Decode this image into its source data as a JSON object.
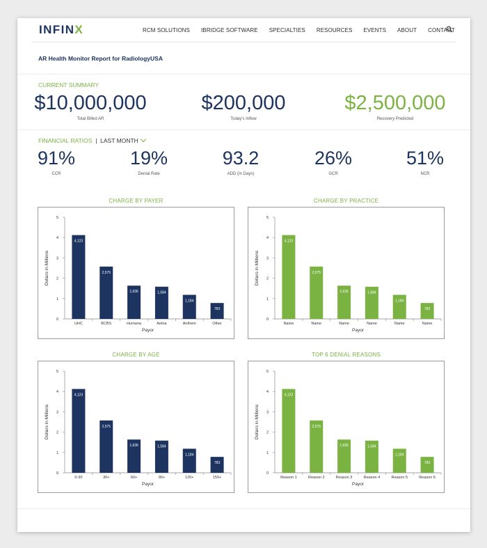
{
  "nav": {
    "logo_main": "INFIN",
    "logo_x": "X",
    "items": [
      "RCM SOLUTIONS",
      "IBRIDGE SOFTWARE",
      "SPECIALTIES",
      "RESOURCES",
      "EVENTS",
      "ABOUT",
      "CONTACT"
    ]
  },
  "report_title": "AR Health Monitor Report for RadiologyUSA",
  "summary": {
    "label": "CURRENT SUMMARY",
    "items": [
      {
        "value": "$10,000,000",
        "caption": "Total Billed AR"
      },
      {
        "value": "$200,000",
        "caption": "Today's Inflow"
      },
      {
        "value": "$2,500,000",
        "caption": "Recovery Predicted"
      }
    ]
  },
  "ratios": {
    "label": "FINANCIAL RATIOS",
    "period": "LAST MONTH",
    "items": [
      {
        "value": "91%",
        "caption": "CCR"
      },
      {
        "value": "19%",
        "caption": "Denial Rate"
      },
      {
        "value": "93.2",
        "caption": "ADD (In Days)"
      },
      {
        "value": "26%",
        "caption": "GCR"
      },
      {
        "value": "51%",
        "caption": "NCR"
      }
    ]
  },
  "colors": {
    "navy": "#1d3461",
    "green": "#7bb342"
  },
  "chart_data": [
    {
      "type": "bar",
      "title": "CHARGE BY PAYER",
      "categories": [
        "UHC",
        "BCBS",
        "Humana",
        "Aetna",
        "Anthem",
        "Other"
      ],
      "values": [
        4.123,
        2.575,
        1.636,
        1.584,
        1.184,
        0.783
      ],
      "labels": [
        "4,123",
        "2,575",
        "1,636",
        "1,584",
        "1,184",
        "783"
      ],
      "xlabel": "Payor",
      "ylabel": "Dollars in Millions",
      "ylim": [
        0,
        5
      ],
      "yticks": [
        "0",
        "1",
        "2",
        "3",
        "4",
        "5"
      ],
      "color": "#1d3461"
    },
    {
      "type": "bar",
      "title": "CHARGE BY PRACTICE",
      "categories": [
        "Name",
        "Name",
        "Name",
        "Name",
        "Name",
        "Name"
      ],
      "values": [
        4.123,
        2.575,
        1.636,
        1.584,
        1.184,
        0.783
      ],
      "labels": [
        "4,123",
        "2,575",
        "1,636",
        "1,584",
        "1,184",
        "783"
      ],
      "xlabel": "Payor",
      "ylabel": "Dollars in Millions",
      "ylim": [
        0,
        5
      ],
      "yticks": [
        "0",
        "1",
        "2",
        "3",
        "4",
        "5"
      ],
      "color": "#7bb342"
    },
    {
      "type": "bar",
      "title": "CHARGE BY AGE",
      "categories": [
        "0-30",
        "30+",
        "60+",
        "90+",
        "120+",
        "150+"
      ],
      "values": [
        4.123,
        2.575,
        1.636,
        1.584,
        1.184,
        0.783
      ],
      "labels": [
        "4,123",
        "2,575",
        "1,636",
        "1,584",
        "1,184",
        "783"
      ],
      "xlabel": "Payor",
      "ylabel": "Dollars in Millions",
      "ylim": [
        0,
        5
      ],
      "yticks": [
        "0",
        "1",
        "2",
        "3",
        "4",
        "5"
      ],
      "color": "#1d3461"
    },
    {
      "type": "bar",
      "title": "TOP 6 DENIAL REASONS",
      "categories": [
        "Reason 1",
        "Reason 2",
        "Reason 3",
        "Reason 4",
        "Reason 5",
        "Reason 6"
      ],
      "values": [
        4.123,
        2.575,
        1.636,
        1.584,
        1.184,
        0.783
      ],
      "labels": [
        "4,123",
        "2,575",
        "1,636",
        "1,584",
        "1,184",
        "783"
      ],
      "xlabel": "Payor",
      "ylabel": "Dollars in Millions",
      "ylim": [
        0,
        5
      ],
      "yticks": [
        "0",
        "1",
        "2",
        "3",
        "4",
        "5"
      ],
      "color": "#7bb342"
    }
  ]
}
